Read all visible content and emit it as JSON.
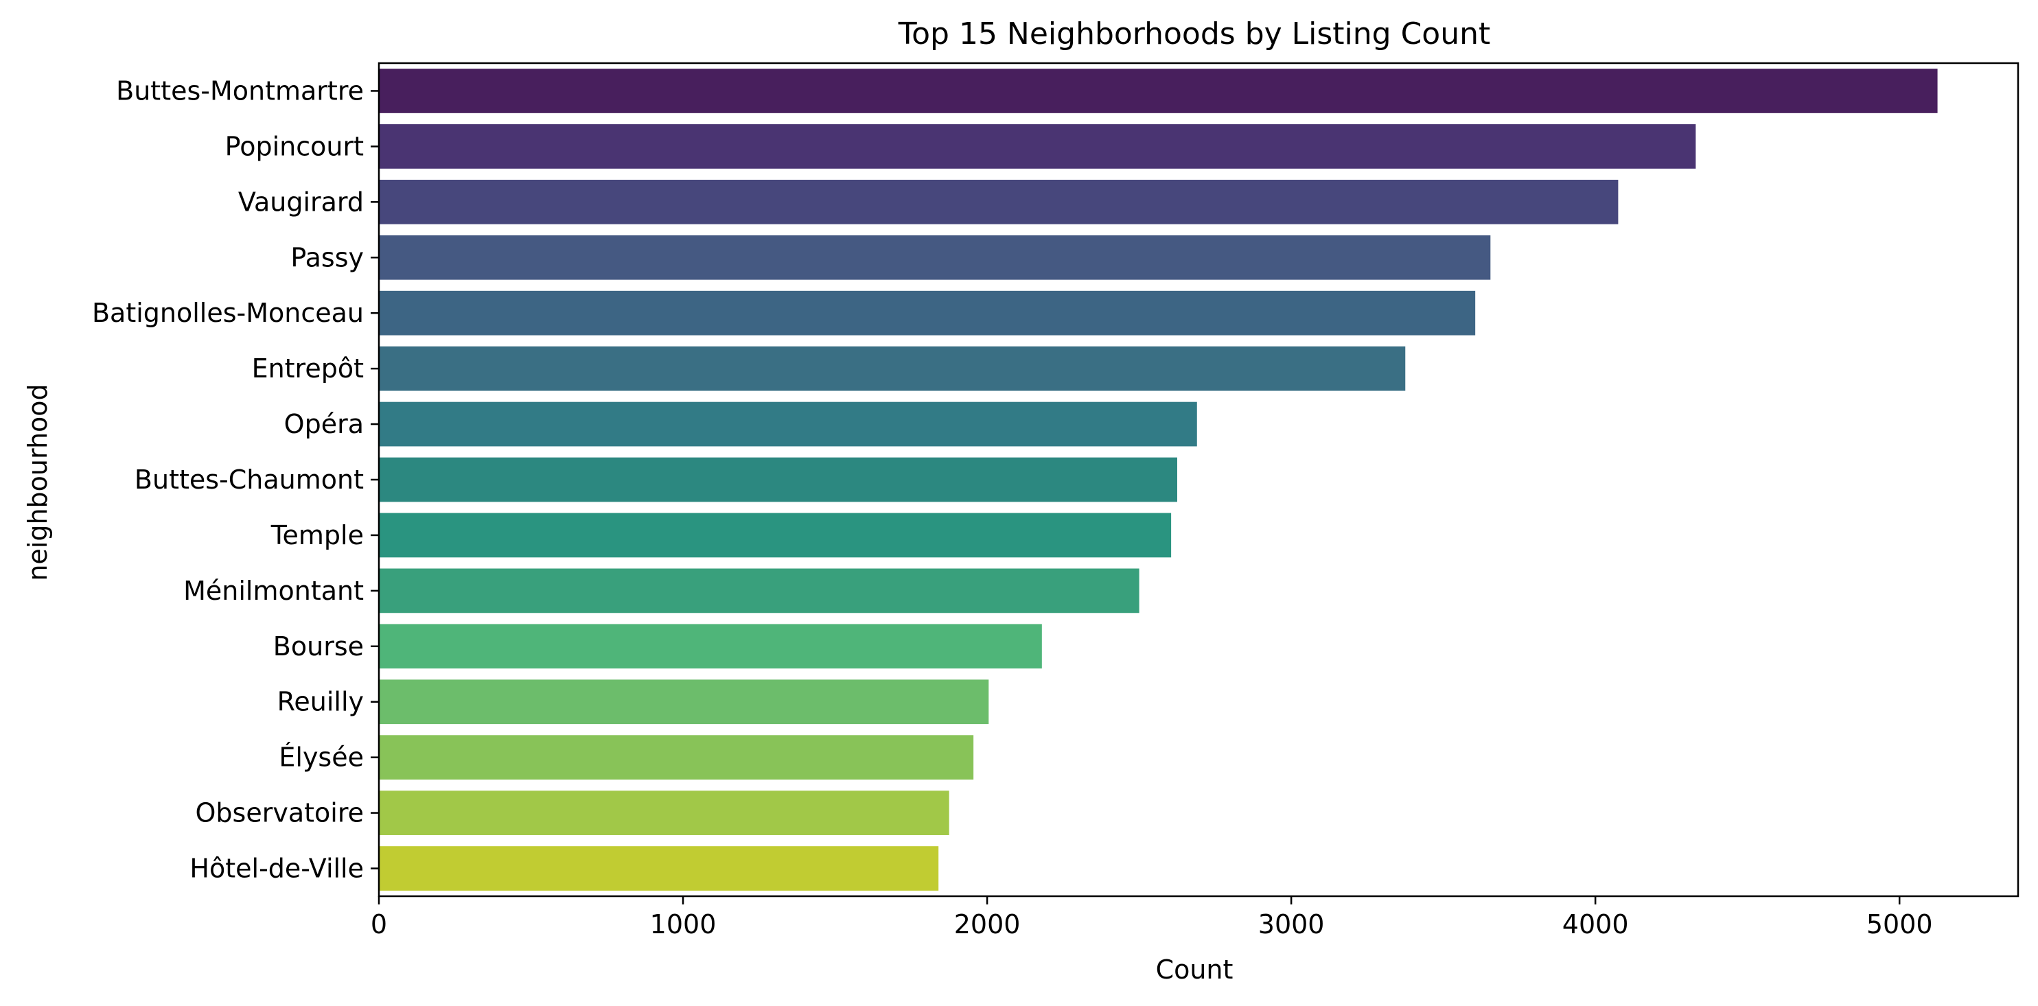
{
  "chart_data": {
    "type": "bar",
    "orientation": "horizontal",
    "title": "Top 15 Neighborhoods by Listing Count",
    "xlabel": "Count",
    "ylabel": "neighbourhood",
    "xlim": [
      0,
      5390
    ],
    "xticks": [
      0,
      1000,
      2000,
      3000,
      4000,
      5000
    ],
    "grid": false,
    "legend": "none",
    "colormap": "viridis",
    "categories": [
      "Buttes-Montmartre",
      "Popincourt",
      "Vaugirard",
      "Passy",
      "Batignolles-Monceau",
      "Entrepôt",
      "Opéra",
      "Buttes-Chaumont",
      "Temple",
      "Ménilmontant",
      "Bourse",
      "Reuilly",
      "Élysée",
      "Observatoire",
      "Hôtel-de-Ville"
    ],
    "values": [
      5125,
      4330,
      4075,
      3655,
      3605,
      3375,
      2690,
      2625,
      2605,
      2500,
      2180,
      2005,
      1955,
      1875,
      1840
    ],
    "colors": [
      "#481f5d",
      "#4a3472",
      "#47477c",
      "#455982",
      "#3d6584",
      "#3a6f84",
      "#327b86",
      "#2c8880",
      "#2a9480",
      "#39a07c",
      "#4fb579",
      "#6cbd6b",
      "#88c358",
      "#a1c848",
      "#c1cc32"
    ]
  }
}
